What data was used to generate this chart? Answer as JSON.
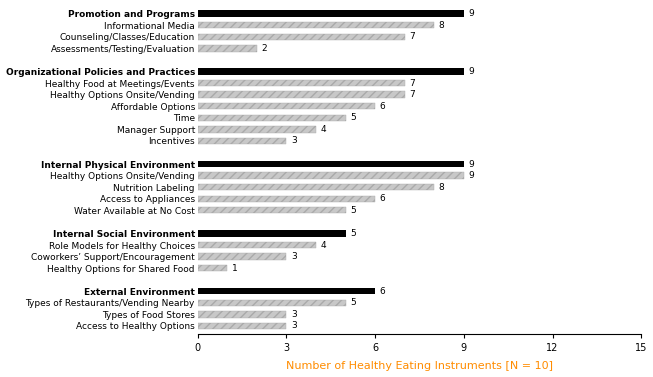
{
  "rows": [
    {
      "label": "Promotion and Programs",
      "value": 9,
      "type": "domain"
    },
    {
      "label": "Informational Media",
      "value": 8,
      "type": "sub"
    },
    {
      "label": "Counseling/Classes/Education",
      "value": 7,
      "type": "sub"
    },
    {
      "label": "Assessments/Testing/Evaluation",
      "value": 2,
      "type": "sub"
    },
    {
      "label": "",
      "value": 0,
      "type": "blank"
    },
    {
      "label": "Organizational Policies and Practices",
      "value": 9,
      "type": "domain"
    },
    {
      "label": "Healthy Food at Meetings/Events",
      "value": 7,
      "type": "sub"
    },
    {
      "label": "Healthy Options Onsite/Vending",
      "value": 7,
      "type": "sub"
    },
    {
      "label": "Affordable Options",
      "value": 6,
      "type": "sub"
    },
    {
      "label": "Time",
      "value": 5,
      "type": "sub"
    },
    {
      "label": "Manager Support",
      "value": 4,
      "type": "sub"
    },
    {
      "label": "Incentives",
      "value": 3,
      "type": "sub"
    },
    {
      "label": "",
      "value": 0,
      "type": "blank"
    },
    {
      "label": "Internal Physical Environment",
      "value": 9,
      "type": "domain"
    },
    {
      "label": "Healthy Options Onsite/Vending",
      "value": 9,
      "type": "sub"
    },
    {
      "label": "Nutrition Labeling",
      "value": 8,
      "type": "sub"
    },
    {
      "label": "Access to Appliances",
      "value": 6,
      "type": "sub"
    },
    {
      "label": "Water Available at No Cost",
      "value": 5,
      "type": "sub"
    },
    {
      "label": "",
      "value": 0,
      "type": "blank"
    },
    {
      "label": "Internal Social Environment",
      "value": 5,
      "type": "domain"
    },
    {
      "label": "Role Models for Healthy Choices",
      "value": 4,
      "type": "sub"
    },
    {
      "label": "Coworkers’ Support/Encouragement",
      "value": 3,
      "type": "sub"
    },
    {
      "label": "Healthy Options for Shared Food",
      "value": 1,
      "type": "sub"
    },
    {
      "label": "",
      "value": 0,
      "type": "blank"
    },
    {
      "label": "External Environment",
      "value": 6,
      "type": "domain"
    },
    {
      "label": "Types of Restaurants/Vending Nearby",
      "value": 5,
      "type": "sub"
    },
    {
      "label": "Types of Food Stores",
      "value": 3,
      "type": "sub"
    },
    {
      "label": "Access to Healthy Options",
      "value": 3,
      "type": "sub"
    }
  ],
  "bar_color_domain": "#000000",
  "bar_color_sub": "#c8c8c8",
  "bar_hatch": "////",
  "hatch_color": "#aaaaaa",
  "xlabel": "Number of Healthy Eating Instruments [N = 10]",
  "xlabel_color": "#ff8c00",
  "xlim": [
    0,
    15
  ],
  "xticks": [
    0,
    3,
    6,
    9,
    12,
    15
  ],
  "figsize": [
    6.53,
    3.77
  ],
  "dpi": 100,
  "bar_height": 0.55,
  "label_fontsize": 6.5,
  "value_fontsize": 6.5
}
